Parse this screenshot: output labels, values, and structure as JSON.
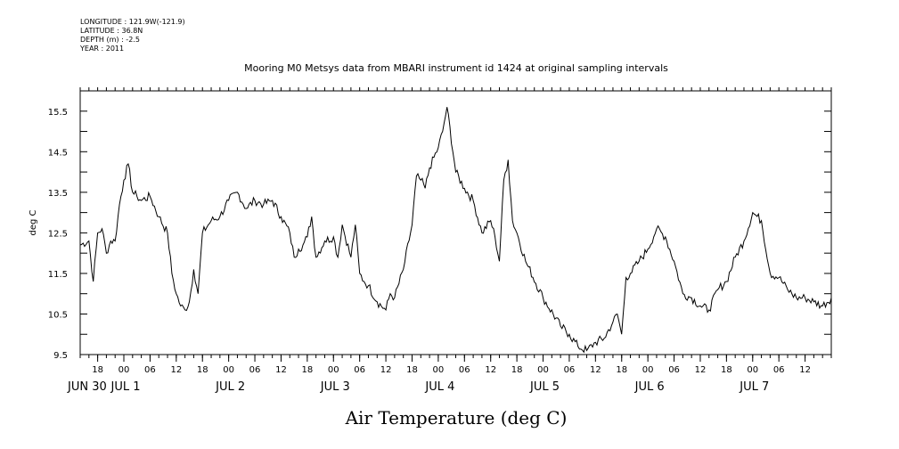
{
  "meta": {
    "longitude": "LONGITUDE : 121.9W(-121.9)",
    "latitude": "LATITUDE : 36.8N",
    "depth": "DEPTH (m) : -2.5",
    "year": "YEAR : 2011"
  },
  "chart_data": {
    "type": "line",
    "title": "Mooring M0 Metsys data from MBARI instrument id 1424 at original sampling intervals",
    "xlabel": "Air Temperature (deg C)",
    "ylabel": "deg C",
    "ylim": [
      9.5,
      16.0
    ],
    "yticks": [
      9.5,
      10.5,
      11.5,
      12.5,
      13.5,
      14.5,
      15.5
    ],
    "ytick_labels": [
      "9.5",
      "10.5",
      "11.5",
      "12.5",
      "13.5",
      "14.5",
      "15.5"
    ],
    "xlim": [
      "2011-06-30 14:00",
      "2011-07-07 18:00"
    ],
    "x_hour_ticks": [
      "18",
      "00",
      "06",
      "12",
      "18",
      "00",
      "06",
      "12",
      "18",
      "00",
      "06",
      "12",
      "18",
      "00",
      "06",
      "12",
      "18",
      "00",
      "06",
      "12",
      "18",
      "00",
      "06",
      "12",
      "18",
      "00",
      "06",
      "12"
    ],
    "x_day_labels": [
      "JUN 30",
      "JUL  1",
      "JUL  2",
      "JUL  3",
      "JUL  4",
      "JUL  5",
      "JUL  6",
      "JUL  7"
    ],
    "grid": false,
    "series": [
      {
        "x": [
          "2011-06-30 14:00",
          "2011-06-30 16:00",
          "2011-06-30 17:00",
          "2011-06-30 18:00",
          "2011-06-30 19:00",
          "2011-06-30 20:00",
          "2011-06-30 21:00",
          "2011-06-30 22:00",
          "2011-06-30 23:00",
          "2011-07-01 00:00",
          "2011-07-01 01:00",
          "2011-07-01 02:00",
          "2011-07-01 03:00",
          "2011-07-01 04:00",
          "2011-07-01 06:00",
          "2011-07-01 08:00",
          "2011-07-01 10:00",
          "2011-07-01 11:00",
          "2011-07-01 12:00",
          "2011-07-01 13:00",
          "2011-07-01 14:00",
          "2011-07-01 15:00",
          "2011-07-01 16:00",
          "2011-07-01 17:00",
          "2011-07-01 18:00",
          "2011-07-01 20:00",
          "2011-07-01 22:00",
          "2011-07-02 00:00",
          "2011-07-02 02:00",
          "2011-07-02 04:00",
          "2011-07-02 06:00",
          "2011-07-02 08:00",
          "2011-07-02 10:00",
          "2011-07-02 12:00",
          "2011-07-02 14:00",
          "2011-07-02 15:00",
          "2011-07-02 16:00",
          "2011-07-02 17:00",
          "2011-07-02 18:00",
          "2011-07-02 19:00",
          "2011-07-02 20:00",
          "2011-07-02 22:00",
          "2011-07-03 00:00",
          "2011-07-03 01:00",
          "2011-07-03 02:00",
          "2011-07-03 04:00",
          "2011-07-03 05:00",
          "2011-07-03 06:00",
          "2011-07-03 07:00",
          "2011-07-03 08:00",
          "2011-07-03 10:00",
          "2011-07-03 12:00",
          "2011-07-03 13:00",
          "2011-07-03 14:00",
          "2011-07-03 16:00",
          "2011-07-03 18:00",
          "2011-07-03 19:00",
          "2011-07-03 20:00",
          "2011-07-03 21:00",
          "2011-07-03 22:00",
          "2011-07-04 00:00",
          "2011-07-04 01:00",
          "2011-07-04 02:00",
          "2011-07-04 04:00",
          "2011-07-04 06:00",
          "2011-07-04 08:00",
          "2011-07-04 10:00",
          "2011-07-04 12:00",
          "2011-07-04 13:00",
          "2011-07-04 14:00",
          "2011-07-04 15:00",
          "2011-07-04 16:00",
          "2011-07-04 17:00",
          "2011-07-04 18:00",
          "2011-07-04 20:00",
          "2011-07-05 00:00",
          "2011-07-05 04:00",
          "2011-07-05 06:00",
          "2011-07-05 08:00",
          "2011-07-05 10:00",
          "2011-07-05 12:00",
          "2011-07-05 14:00",
          "2011-07-05 16:00",
          "2011-07-05 17:00",
          "2011-07-05 18:00",
          "2011-07-05 19:00",
          "2011-07-05 20:00",
          "2011-07-05 22:00",
          "2011-07-06 00:00",
          "2011-07-06 02:00",
          "2011-07-06 04:00",
          "2011-07-06 06:00",
          "2011-07-06 08:00",
          "2011-07-06 10:00",
          "2011-07-06 12:00",
          "2011-07-06 14:00",
          "2011-07-06 16:00",
          "2011-07-06 18:00",
          "2011-07-06 20:00",
          "2011-07-06 22:00",
          "2011-07-07 00:00",
          "2011-07-07 02:00",
          "2011-07-07 04:00",
          "2011-07-07 06:00",
          "2011-07-07 08:00",
          "2011-07-07 10:00",
          "2011-07-07 12:00",
          "2011-07-07 14:00",
          "2011-07-07 16:00",
          "2011-07-07 18:00"
        ],
        "values": [
          12.2,
          12.3,
          11.3,
          12.5,
          12.6,
          12.0,
          12.3,
          12.3,
          13.2,
          13.8,
          14.2,
          13.5,
          13.4,
          13.3,
          13.4,
          12.9,
          12.5,
          11.5,
          11.0,
          10.7,
          10.6,
          10.8,
          11.6,
          11.0,
          12.5,
          12.8,
          12.9,
          13.3,
          13.5,
          13.1,
          13.3,
          13.2,
          13.3,
          12.9,
          12.5,
          11.9,
          12.1,
          12.2,
          12.4,
          12.9,
          11.9,
          12.3,
          12.4,
          11.9,
          12.7,
          11.9,
          12.7,
          11.5,
          11.3,
          11.2,
          10.8,
          10.6,
          11.0,
          10.9,
          11.6,
          12.7,
          13.9,
          13.8,
          13.6,
          14.1,
          14.6,
          15.0,
          15.6,
          14.0,
          13.6,
          13.3,
          12.5,
          12.8,
          12.4,
          11.8,
          13.8,
          14.3,
          12.8,
          12.5,
          11.8,
          10.9,
          10.2,
          10.0,
          9.7,
          9.6,
          9.8,
          9.9,
          10.3,
          10.5,
          10.0,
          11.4,
          11.5,
          11.8,
          12.1,
          12.6,
          12.4,
          11.8,
          11.0,
          10.9,
          10.7,
          10.6,
          11.1,
          11.3,
          11.9,
          12.3,
          13.0,
          12.8,
          11.5,
          11.4,
          11.1,
          10.9,
          10.9,
          10.8,
          10.7,
          10.9
        ]
      }
    ]
  }
}
